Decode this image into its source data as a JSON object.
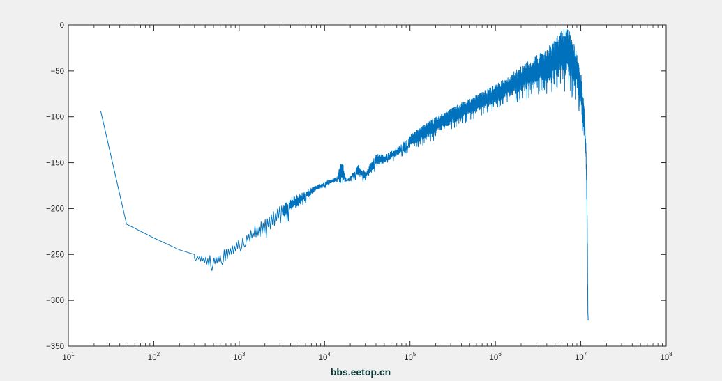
{
  "watermark": "bbs.eetop.cn",
  "colors": {
    "figure_background": "#f0f0f0",
    "axes_background": "#ffffff",
    "axis": "#262626",
    "series": "#0072bd",
    "watermark": "#0d3b3a"
  },
  "chart_data": {
    "type": "line",
    "title": "",
    "xlabel": "",
    "ylabel": "",
    "xscale": "log",
    "xlim": [
      10,
      100000000
    ],
    "ylim": [
      -350,
      0
    ],
    "grid": false,
    "legend": "none",
    "x_tick_labels": [
      {
        "base": "10",
        "exp": "1"
      },
      {
        "base": "10",
        "exp": "2"
      },
      {
        "base": "10",
        "exp": "3"
      },
      {
        "base": "10",
        "exp": "4"
      },
      {
        "base": "10",
        "exp": "5"
      },
      {
        "base": "10",
        "exp": "6"
      },
      {
        "base": "10",
        "exp": "7"
      },
      {
        "base": "10",
        "exp": "8"
      }
    ],
    "y_ticks": [
      0,
      -50,
      -100,
      -150,
      -200,
      -250,
      -300,
      -350
    ],
    "y_tick_labels": [
      "0",
      "−50",
      "−100",
      "−150",
      "−200",
      "−250",
      "−300",
      "−350"
    ],
    "series": [
      {
        "color": "#0072bd",
        "x": [
          24,
          48,
          100,
          200,
          300,
          400,
          450,
          500,
          560,
          650,
          750,
          1000,
          2000,
          4000,
          8000,
          14000,
          16000,
          18000,
          25000,
          30000,
          40000,
          50000,
          80000,
          100000,
          200000,
          400000,
          1000000,
          2000000,
          4000000,
          5000000,
          6000000,
          7000000,
          8000000,
          9000000,
          10000000,
          11000000,
          11500000,
          11800000,
          12000000,
          12100000,
          12200000
        ],
        "upper": [
          -94,
          -217,
          -232,
          -245,
          -250,
          -252,
          -250,
          -252,
          -250,
          -245,
          -242,
          -232,
          -210,
          -188,
          -175,
          -165,
          -142,
          -170,
          -152,
          -160,
          -140,
          -142,
          -130,
          -120,
          -100,
          -85,
          -65,
          -45,
          -25,
          -15,
          -5,
          -2,
          -10,
          -30,
          -50,
          -90,
          -130,
          -170,
          -250,
          -310,
          -322
        ],
        "lower": [
          -94,
          -217,
          -232,
          -248,
          -255,
          -260,
          -265,
          -265,
          -262,
          -258,
          -255,
          -245,
          -228,
          -205,
          -180,
          -170,
          -175,
          -170,
          -165,
          -168,
          -155,
          -150,
          -140,
          -132,
          -118,
          -102,
          -85,
          -72,
          -62,
          -58,
          -55,
          -55,
          -60,
          -70,
          -90,
          -120,
          -150,
          -200,
          -280,
          -315,
          -322
        ]
      }
    ]
  }
}
